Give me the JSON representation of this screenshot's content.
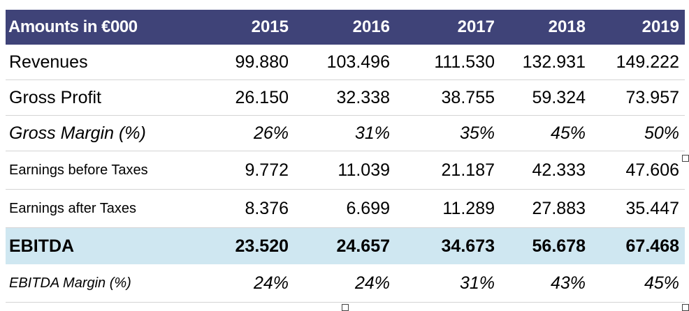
{
  "chart_data": {
    "type": "table",
    "columns": [
      "Amounts in €000",
      "2015",
      "2016",
      "2017",
      "2018",
      "2019"
    ],
    "rows": [
      {
        "label": "Revenues",
        "values": [
          "99.880",
          "103.496",
          "111.530",
          "132.931",
          "149.222"
        ]
      },
      {
        "label": "Gross Profit",
        "values": [
          "26.150",
          "32.338",
          "38.755",
          "59.324",
          "73.957"
        ]
      },
      {
        "label": "Gross Margin (%)",
        "values": [
          "26%",
          "31%",
          "35%",
          "45%",
          "50%"
        ]
      },
      {
        "label": "Earnings before Taxes",
        "values": [
          "9.772",
          "11.039",
          "21.187",
          "42.333",
          "47.606"
        ]
      },
      {
        "label": "Earnings after Taxes",
        "values": [
          "8.376",
          "6.699",
          "11.289",
          "27.883",
          "35.447"
        ]
      },
      {
        "label": "EBITDA",
        "values": [
          "23.520",
          "24.657",
          "34.673",
          "56.678",
          "67.468"
        ]
      },
      {
        "label": "EBITDA Margin (%)",
        "values": [
          "24%",
          "24%",
          "31%",
          "43%",
          "45%"
        ]
      }
    ],
    "colors": {
      "header_bg": "#3f4378",
      "header_text": "#ffffff",
      "highlight_bg": "#cfe7f1"
    }
  }
}
